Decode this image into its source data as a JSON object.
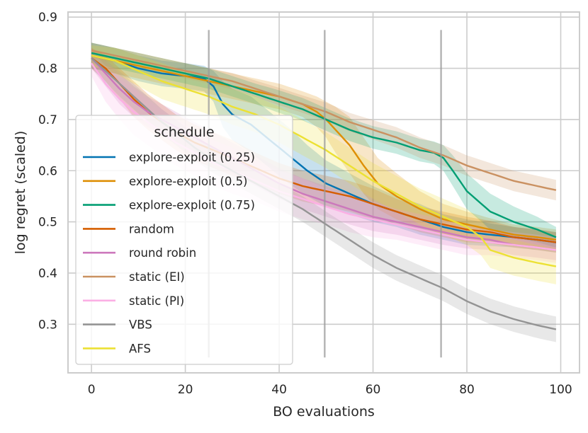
{
  "chart_data": {
    "type": "line",
    "title": "",
    "xlabel": "BO evaluations",
    "ylabel": "log regret (scaled)",
    "xlim": [
      -5,
      104
    ],
    "ylim": [
      0.205,
      0.91
    ],
    "xticks": [
      0,
      20,
      40,
      60,
      80,
      100
    ],
    "yticks": [
      0.3,
      0.4,
      0.5,
      0.6,
      0.7,
      0.8,
      0.9
    ],
    "xtick_labels": [
      "0",
      "20",
      "40",
      "60",
      "80",
      "100"
    ],
    "ytick_labels": [
      "0.3",
      "0.4",
      "0.5",
      "0.6",
      "0.7",
      "0.8",
      "0.9"
    ],
    "grid": true,
    "vlines": [
      {
        "x": 25,
        "y0": 0.235,
        "y1": 0.875
      },
      {
        "x": 49.7,
        "y0": 0.235,
        "y1": 0.875
      },
      {
        "x": 74.5,
        "y0": 0.235,
        "y1": 0.875
      }
    ],
    "legend": {
      "title": "schedule",
      "position": "left"
    },
    "series": [
      {
        "name": "explore-exploit (0.25)",
        "color": "#0173b2",
        "x": [
          0,
          5,
          10,
          15,
          20,
          24,
          26,
          28,
          30,
          34,
          38,
          42,
          46,
          50,
          55,
          60,
          65,
          70,
          75,
          80,
          85,
          90,
          95,
          99
        ],
        "y": [
          0.825,
          0.815,
          0.8,
          0.79,
          0.785,
          0.78,
          0.765,
          0.73,
          0.71,
          0.69,
          0.66,
          0.63,
          0.6,
          0.575,
          0.555,
          0.535,
          0.52,
          0.505,
          0.49,
          0.48,
          0.475,
          0.47,
          0.465,
          0.46
        ],
        "band": [
          0.025,
          0.025,
          0.025,
          0.025,
          0.025,
          0.025,
          0.03,
          0.045,
          0.05,
          0.055,
          0.055,
          0.055,
          0.05,
          0.045,
          0.04,
          0.035,
          0.03,
          0.03,
          0.025,
          0.025,
          0.022,
          0.02,
          0.02,
          0.02
        ]
      },
      {
        "name": "explore-exploit (0.5)",
        "color": "#de8f05",
        "x": [
          0,
          5,
          10,
          15,
          20,
          25,
          30,
          35,
          40,
          45,
          48,
          50,
          52,
          55,
          58,
          61,
          65,
          70,
          75,
          80,
          85,
          90,
          95,
          99
        ],
        "y": [
          0.825,
          0.815,
          0.805,
          0.795,
          0.785,
          0.775,
          0.765,
          0.755,
          0.745,
          0.73,
          0.715,
          0.7,
          0.68,
          0.65,
          0.61,
          0.575,
          0.55,
          0.525,
          0.505,
          0.495,
          0.485,
          0.475,
          0.47,
          0.465
        ],
        "band": [
          0.025,
          0.025,
          0.025,
          0.025,
          0.025,
          0.025,
          0.025,
          0.025,
          0.025,
          0.025,
          0.03,
          0.035,
          0.045,
          0.055,
          0.055,
          0.05,
          0.045,
          0.035,
          0.03,
          0.025,
          0.022,
          0.02,
          0.02,
          0.02
        ]
      },
      {
        "name": "explore-exploit (0.75)",
        "color": "#029e73",
        "x": [
          0,
          5,
          10,
          15,
          20,
          25,
          30,
          35,
          40,
          45,
          50,
          55,
          60,
          65,
          70,
          73,
          75,
          77,
          80,
          85,
          90,
          95,
          99
        ],
        "y": [
          0.83,
          0.82,
          0.81,
          0.8,
          0.79,
          0.78,
          0.765,
          0.75,
          0.735,
          0.72,
          0.7,
          0.68,
          0.665,
          0.655,
          0.64,
          0.635,
          0.625,
          0.6,
          0.56,
          0.52,
          0.5,
          0.485,
          0.47
        ],
        "band": [
          0.02,
          0.02,
          0.02,
          0.02,
          0.02,
          0.02,
          0.02,
          0.02,
          0.022,
          0.022,
          0.022,
          0.022,
          0.022,
          0.022,
          0.022,
          0.022,
          0.025,
          0.03,
          0.035,
          0.035,
          0.03,
          0.025,
          0.02
        ]
      },
      {
        "name": "random",
        "color": "#d55e00",
        "x": [
          0,
          3,
          6,
          9,
          12,
          15,
          18,
          22,
          26,
          30,
          35,
          40,
          45,
          50,
          55,
          60,
          65,
          70,
          75,
          80,
          85,
          90,
          95,
          99
        ],
        "y": [
          0.82,
          0.8,
          0.77,
          0.74,
          0.715,
          0.695,
          0.675,
          0.655,
          0.64,
          0.625,
          0.605,
          0.585,
          0.57,
          0.56,
          0.55,
          0.535,
          0.52,
          0.505,
          0.495,
          0.485,
          0.48,
          0.47,
          0.465,
          0.46
        ],
        "band": [
          0.02,
          0.025,
          0.03,
          0.035,
          0.035,
          0.035,
          0.035,
          0.035,
          0.035,
          0.035,
          0.03,
          0.03,
          0.03,
          0.03,
          0.03,
          0.03,
          0.025,
          0.025,
          0.025,
          0.025,
          0.022,
          0.02,
          0.02,
          0.02
        ]
      },
      {
        "name": "round robin",
        "color": "#cc78bc",
        "x": [
          0,
          3,
          6,
          9,
          12,
          15,
          18,
          22,
          26,
          30,
          35,
          40,
          45,
          50,
          55,
          60,
          65,
          70,
          75,
          80,
          85,
          90,
          95,
          99
        ],
        "y": [
          0.82,
          0.79,
          0.76,
          0.735,
          0.715,
          0.7,
          0.685,
          0.665,
          0.645,
          0.625,
          0.6,
          0.575,
          0.555,
          0.54,
          0.525,
          0.51,
          0.5,
          0.49,
          0.48,
          0.47,
          0.465,
          0.455,
          0.45,
          0.445
        ],
        "band": [
          0.02,
          0.025,
          0.03,
          0.03,
          0.03,
          0.03,
          0.03,
          0.03,
          0.03,
          0.03,
          0.03,
          0.03,
          0.03,
          0.03,
          0.03,
          0.028,
          0.025,
          0.025,
          0.025,
          0.022,
          0.02,
          0.02,
          0.02,
          0.02
        ]
      },
      {
        "name": "static (EI)",
        "color": "#ca9161",
        "x": [
          0,
          5,
          10,
          15,
          20,
          25,
          30,
          35,
          40,
          45,
          50,
          55,
          60,
          65,
          70,
          75,
          80,
          85,
          90,
          95,
          99
        ],
        "y": [
          0.835,
          0.825,
          0.815,
          0.805,
          0.795,
          0.785,
          0.775,
          0.76,
          0.745,
          0.73,
          0.715,
          0.695,
          0.68,
          0.665,
          0.645,
          0.63,
          0.61,
          0.595,
          0.58,
          0.57,
          0.562
        ],
        "band": [
          0.015,
          0.015,
          0.015,
          0.015,
          0.015,
          0.015,
          0.016,
          0.016,
          0.017,
          0.017,
          0.018,
          0.018,
          0.019,
          0.02,
          0.02,
          0.02,
          0.02,
          0.02,
          0.02,
          0.02,
          0.02
        ]
      },
      {
        "name": "static (PI)",
        "color": "#fbafe4",
        "x": [
          0,
          3,
          6,
          9,
          12,
          15,
          18,
          22,
          26,
          30,
          35,
          40,
          45,
          50,
          55,
          60,
          65,
          70,
          75,
          80,
          85,
          90,
          95,
          99
        ],
        "y": [
          0.81,
          0.77,
          0.74,
          0.715,
          0.695,
          0.675,
          0.655,
          0.635,
          0.615,
          0.6,
          0.58,
          0.56,
          0.545,
          0.53,
          0.515,
          0.505,
          0.495,
          0.485,
          0.475,
          0.465,
          0.46,
          0.455,
          0.45,
          0.445
        ],
        "band": [
          0.025,
          0.035,
          0.04,
          0.045,
          0.045,
          0.045,
          0.045,
          0.045,
          0.045,
          0.045,
          0.04,
          0.04,
          0.04,
          0.035,
          0.035,
          0.035,
          0.03,
          0.03,
          0.03,
          0.03,
          0.025,
          0.025,
          0.025,
          0.025
        ]
      },
      {
        "name": "VBS",
        "color": "#949494",
        "x": [
          0,
          3,
          6,
          9,
          12,
          15,
          18,
          22,
          26,
          30,
          35,
          40,
          45,
          50,
          55,
          60,
          65,
          70,
          75,
          80,
          85,
          90,
          95,
          99
        ],
        "y": [
          0.82,
          0.795,
          0.77,
          0.745,
          0.72,
          0.695,
          0.675,
          0.645,
          0.62,
          0.6,
          0.575,
          0.55,
          0.525,
          0.495,
          0.465,
          0.435,
          0.41,
          0.39,
          0.37,
          0.345,
          0.325,
          0.31,
          0.298,
          0.29
        ],
        "band": [
          0.02,
          0.022,
          0.025,
          0.025,
          0.025,
          0.025,
          0.025,
          0.025,
          0.025,
          0.025,
          0.025,
          0.025,
          0.025,
          0.025,
          0.025,
          0.025,
          0.025,
          0.025,
          0.025,
          0.025,
          0.025,
          0.025,
          0.025,
          0.025
        ]
      },
      {
        "name": "AFS",
        "color": "#ece133",
        "x": [
          0,
          5,
          10,
          15,
          20,
          25,
          30,
          35,
          40,
          45,
          50,
          55,
          60,
          65,
          70,
          75,
          80,
          83,
          85,
          90,
          95,
          99
        ],
        "y": [
          0.825,
          0.815,
          0.795,
          0.775,
          0.76,
          0.745,
          0.725,
          0.71,
          0.69,
          0.665,
          0.64,
          0.61,
          0.58,
          0.555,
          0.53,
          0.51,
          0.49,
          0.47,
          0.445,
          0.43,
          0.42,
          0.413
        ],
        "band": [
          0.02,
          0.025,
          0.03,
          0.035,
          0.035,
          0.035,
          0.035,
          0.035,
          0.035,
          0.035,
          0.035,
          0.035,
          0.035,
          0.035,
          0.035,
          0.035,
          0.035,
          0.035,
          0.035,
          0.035,
          0.035,
          0.035
        ]
      }
    ]
  }
}
